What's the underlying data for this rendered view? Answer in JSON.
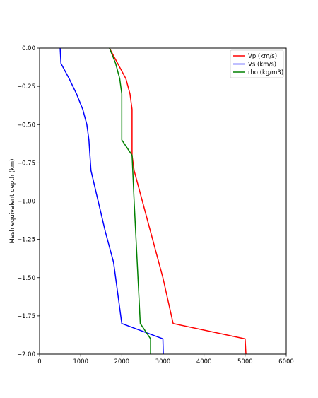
{
  "chart_data": {
    "type": "line",
    "title": "",
    "xlabel": "",
    "ylabel": "Mesh equivalent depth (km)",
    "xlim": [
      0,
      6000
    ],
    "ylim": [
      -2.0,
      0.0
    ],
    "xticks": [
      "0",
      "1000",
      "2000",
      "3000",
      "4000",
      "5000",
      "6000"
    ],
    "yticks": [
      "0.00",
      "−0.25",
      "−0.50",
      "−0.75",
      "−1.00",
      "−1.25",
      "−1.50",
      "−1.75",
      "−2.00"
    ],
    "legend_position": "top-right",
    "grid": false,
    "series": [
      {
        "name": "Vp (km/s)",
        "color": "#ff0000",
        "points": [
          [
            1700,
            0.0
          ],
          [
            2100,
            -0.2
          ],
          [
            2200,
            -0.3
          ],
          [
            2250,
            -0.4
          ],
          [
            2250,
            -0.7
          ],
          [
            2300,
            -0.8
          ],
          [
            2400,
            -0.9
          ],
          [
            2500,
            -1.0
          ],
          [
            3000,
            -1.5
          ],
          [
            3250,
            -1.8
          ],
          [
            5000,
            -1.9
          ],
          [
            5020,
            -2.0
          ]
        ]
      },
      {
        "name": "Vs (km/s)",
        "color": "#0000ff",
        "points": [
          [
            500,
            0.0
          ],
          [
            520,
            -0.1
          ],
          [
            720,
            -0.2
          ],
          [
            900,
            -0.3
          ],
          [
            1050,
            -0.4
          ],
          [
            1150,
            -0.5
          ],
          [
            1200,
            -0.6
          ],
          [
            1250,
            -0.8
          ],
          [
            1600,
            -1.2
          ],
          [
            1800,
            -1.4
          ],
          [
            1900,
            -1.6
          ],
          [
            2000,
            -1.8
          ],
          [
            3000,
            -1.9
          ],
          [
            3010,
            -2.0
          ]
        ]
      },
      {
        "name": "rho (kg/m3)",
        "color": "#008000",
        "points": [
          [
            1700,
            0.0
          ],
          [
            1850,
            -0.1
          ],
          [
            1950,
            -0.2
          ],
          [
            2000,
            -0.3
          ],
          [
            2000,
            -0.6
          ],
          [
            2250,
            -0.7
          ],
          [
            2300,
            -1.0
          ],
          [
            2450,
            -1.8
          ],
          [
            2700,
            -1.9
          ],
          [
            2700,
            -2.0
          ]
        ]
      }
    ]
  }
}
